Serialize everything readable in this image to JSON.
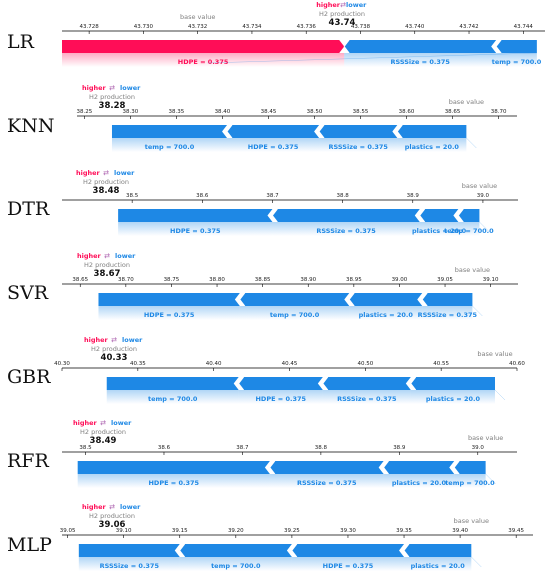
{
  "legend": {
    "higher": "higher",
    "arrow": "⇄",
    "lower": "lower",
    "output_name": "H2 production",
    "base_label": "base value"
  },
  "colors": {
    "positive": "#ff0d57",
    "negative": "#1e88e5",
    "axis": "#000000",
    "base": "#808080"
  },
  "chart_data": [
    {
      "type": "bar",
      "model": "LR",
      "prediction": "43.74",
      "xlim": [
        43.727,
        43.7448
      ],
      "ticks": [
        43.728,
        43.73,
        43.732,
        43.734,
        43.736,
        43.738,
        43.74,
        43.742,
        43.744
      ],
      "tick_labels": [
        "43.728",
        "43.730",
        "43.732",
        "43.734",
        "43.736",
        "43.738",
        "43.740",
        "43.742",
        "43.744"
      ],
      "base_value": 43.732,
      "output_value": 43.7374,
      "segments": [
        {
          "feature": "HDPE = 0.375",
          "sign": "positive",
          "start": 43.727,
          "end": 43.7374
        },
        {
          "feature": "RSSSize = 0.375",
          "sign": "negative",
          "start": 43.7374,
          "end": 43.743
        },
        {
          "feature": "temp = 700.0",
          "sign": "negative",
          "start": 43.743,
          "end": 43.7445
        }
      ]
    },
    {
      "type": "bar",
      "model": "KNN",
      "prediction": "38.28",
      "xlim": [
        38.242,
        38.72
      ],
      "ticks": [
        38.25,
        38.3,
        38.35,
        38.4,
        38.45,
        38.5,
        38.55,
        38.6,
        38.65,
        38.7
      ],
      "tick_labels": [
        "38.25",
        "38.30",
        "38.35",
        "38.40",
        "38.45",
        "38.50",
        "38.55",
        "38.60",
        "38.65",
        "38.70"
      ],
      "base_value": 38.665,
      "output_value": 38.28,
      "segments": [
        {
          "feature": "temp = 700.0",
          "sign": "negative",
          "start": 38.28,
          "end": 38.405
        },
        {
          "feature": "HDPE = 0.375",
          "sign": "negative",
          "start": 38.405,
          "end": 38.505
        },
        {
          "feature": "RSSSize = 0.375",
          "sign": "negative",
          "start": 38.505,
          "end": 38.59
        },
        {
          "feature": "plastics = 20.0",
          "sign": "negative",
          "start": 38.59,
          "end": 38.665
        }
      ]
    },
    {
      "type": "bar",
      "model": "DTR",
      "prediction": "38.48",
      "xlim": [
        38.4,
        39.05
      ],
      "ticks": [
        38.5,
        38.6,
        38.7,
        38.8,
        38.9,
        39.0
      ],
      "tick_labels": [
        "38.5",
        "38.6",
        "38.7",
        "38.8",
        "38.9",
        "39.0"
      ],
      "base_value": 38.995,
      "output_value": 38.48,
      "segments": [
        {
          "feature": "HDPE = 0.375",
          "sign": "negative",
          "start": 38.48,
          "end": 38.7
        },
        {
          "feature": "RSSSize = 0.375",
          "sign": "negative",
          "start": 38.7,
          "end": 38.91
        },
        {
          "feature": "plastics = 20.0",
          "sign": "negative",
          "start": 38.91,
          "end": 38.965
        },
        {
          "feature": "temp = 700.0",
          "sign": "negative",
          "start": 38.965,
          "end": 38.995
        }
      ]
    },
    {
      "type": "bar",
      "model": "SVR",
      "prediction": "38.67",
      "xlim": [
        38.63,
        39.13
      ],
      "ticks": [
        38.65,
        38.7,
        38.75,
        38.8,
        38.85,
        38.9,
        38.95,
        39.0,
        39.05,
        39.1
      ],
      "tick_labels": [
        "38.65",
        "38.70",
        "38.75",
        "38.80",
        "38.85",
        "38.90",
        "38.95",
        "39.00",
        "39.05",
        "39.10"
      ],
      "base_value": 39.08,
      "output_value": 38.67,
      "segments": [
        {
          "feature": "HDPE = 0.375",
          "sign": "negative",
          "start": 38.67,
          "end": 38.825
        },
        {
          "feature": "temp = 700.0",
          "sign": "negative",
          "start": 38.825,
          "end": 38.945
        },
        {
          "feature": "plastics = 20.0",
          "sign": "negative",
          "start": 38.945,
          "end": 39.025
        },
        {
          "feature": "RSSSize = 0.375",
          "sign": "negative",
          "start": 39.025,
          "end": 39.08
        }
      ]
    },
    {
      "type": "bar",
      "model": "GBR",
      "prediction": "40.33",
      "xlim": [
        40.3,
        40.6
      ],
      "ticks": [
        40.3,
        40.35,
        40.4,
        40.45,
        40.5,
        40.55,
        40.6
      ],
      "tick_labels": [
        "40.30",
        "40.35",
        "40.40",
        "40.45",
        "40.50",
        "40.55",
        "40.60"
      ],
      "base_value": 40.5855,
      "output_value": 40.3295,
      "segments": [
        {
          "feature": "temp = 700.0",
          "sign": "negative",
          "start": 40.3295,
          "end": 40.4165
        },
        {
          "feature": "HDPE = 0.375",
          "sign": "negative",
          "start": 40.4165,
          "end": 40.472
        },
        {
          "feature": "RSSSize = 0.375",
          "sign": "negative",
          "start": 40.472,
          "end": 40.53
        },
        {
          "feature": "plastics = 20.0",
          "sign": "negative",
          "start": 40.53,
          "end": 40.5855
        }
      ]
    },
    {
      "type": "bar",
      "model": "RFR",
      "prediction": "38.49",
      "xlim": [
        38.47,
        39.05
      ],
      "ticks": [
        38.5,
        38.6,
        38.7,
        38.8,
        38.9,
        39.0
      ],
      "tick_labels": [
        "38.5",
        "38.6",
        "38.7",
        "38.8",
        "38.9",
        "39.0"
      ],
      "base_value": 39.01,
      "output_value": 38.49,
      "segments": [
        {
          "feature": "HDPE = 0.375",
          "sign": "negative",
          "start": 38.49,
          "end": 38.735
        },
        {
          "feature": "RSSSize = 0.375",
          "sign": "negative",
          "start": 38.735,
          "end": 38.88
        },
        {
          "feature": "plastics = 20.0",
          "sign": "negative",
          "start": 38.88,
          "end": 38.97
        },
        {
          "feature": "temp = 700.0",
          "sign": "negative",
          "start": 38.97,
          "end": 39.01
        }
      ]
    },
    {
      "type": "bar",
      "model": "MLP",
      "prediction": "39.06",
      "xlim": [
        39.045,
        39.465
      ],
      "ticks": [
        39.05,
        39.1,
        39.15,
        39.2,
        39.25,
        39.3,
        39.35,
        39.4,
        39.45
      ],
      "tick_labels": [
        "39.05",
        "39.10",
        "39.15",
        "39.20",
        "39.25",
        "39.30",
        "39.35",
        "39.40",
        "39.45"
      ],
      "base_value": 39.41,
      "output_value": 39.06,
      "segments": [
        {
          "feature": "RSSSize = 0.375",
          "sign": "negative",
          "start": 39.06,
          "end": 39.15
        },
        {
          "feature": "temp = 700.0",
          "sign": "negative",
          "start": 39.15,
          "end": 39.25
        },
        {
          "feature": "HDPE = 0.375",
          "sign": "negative",
          "start": 39.25,
          "end": 39.35
        },
        {
          "feature": "plastics = 20.0",
          "sign": "negative",
          "start": 39.35,
          "end": 39.41
        }
      ]
    }
  ]
}
